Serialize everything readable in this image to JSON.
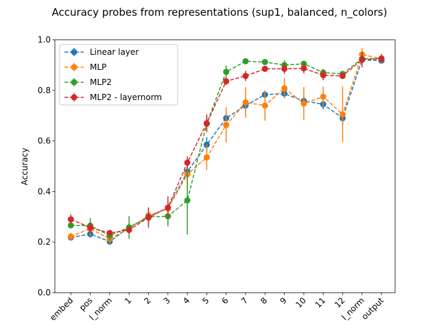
{
  "chart_data": {
    "type": "line",
    "title": "Accuracy probes from representations (sup1, balanced, n_colors)",
    "xlabel": "",
    "ylabel": "Accuracy",
    "ylim": [
      0.0,
      1.0
    ],
    "yticks": [
      "0.0",
      "0.2",
      "0.4",
      "0.6",
      "0.8",
      "1.0"
    ],
    "categories": [
      "embed",
      "pos",
      "l_norm",
      "1",
      "2",
      "3",
      "4",
      "5",
      "6",
      "7",
      "8",
      "9",
      "10",
      "11",
      "12",
      "l_norm",
      "output"
    ],
    "legend_position": "top-left",
    "grid": false,
    "series": [
      {
        "name": "Linear layer",
        "color": "#1f77b4",
        "values": [
          0.218,
          0.232,
          0.202,
          0.258,
          0.3,
          0.335,
          0.478,
          0.585,
          0.69,
          0.74,
          0.783,
          0.787,
          0.758,
          0.745,
          0.69,
          0.921,
          0.917
        ],
        "errors": [
          0.01,
          0.015,
          0.012,
          0.015,
          0.02,
          0.02,
          0.03,
          0.03,
          0.02,
          0.02,
          0.015,
          0.012,
          0.02,
          0.02,
          0.03,
          0.02,
          0.01
        ]
      },
      {
        "name": "MLP",
        "color": "#ff7f0e",
        "values": [
          0.222,
          0.253,
          0.213,
          0.254,
          0.305,
          0.333,
          0.468,
          0.535,
          0.663,
          0.752,
          0.74,
          0.808,
          0.748,
          0.775,
          0.705,
          0.942,
          0.925
        ],
        "errors": [
          0.015,
          0.03,
          0.02,
          0.02,
          0.03,
          0.03,
          0.06,
          0.05,
          0.07,
          0.06,
          0.06,
          0.04,
          0.065,
          0.04,
          0.11,
          0.025,
          0.02
        ]
      },
      {
        "name": "MLP2",
        "color": "#2ca02c",
        "values": [
          0.266,
          0.265,
          0.226,
          0.258,
          0.3,
          0.302,
          0.365,
          0.668,
          0.873,
          0.915,
          0.912,
          0.9,
          0.905,
          0.87,
          0.865,
          0.925,
          0.926
        ],
        "errors": [
          0.01,
          0.03,
          0.02,
          0.045,
          0.035,
          0.04,
          0.135,
          0.03,
          0.025,
          0.01,
          0.01,
          0.02,
          0.01,
          0.015,
          0.01,
          0.01,
          0.015
        ]
      },
      {
        "name": "MLP2 - layernorm",
        "color": "#d62728",
        "values": [
          0.29,
          0.257,
          0.236,
          0.248,
          0.297,
          0.336,
          0.514,
          0.67,
          0.836,
          0.857,
          0.885,
          0.885,
          0.887,
          0.86,
          0.857,
          0.921,
          0.925
        ],
        "errors": [
          0.02,
          0.02,
          0.01,
          0.015,
          0.04,
          0.045,
          0.025,
          0.035,
          0.015,
          0.02,
          0.01,
          0.02,
          0.02,
          0.02,
          0.01,
          0.03,
          0.015
        ]
      }
    ]
  }
}
